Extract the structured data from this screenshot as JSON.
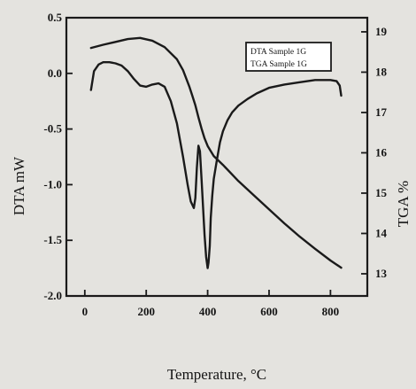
{
  "chart_data": {
    "type": "line",
    "xlabel": "Temperature, °C",
    "ylabel": "DTA mW",
    "y2label": "TGA %",
    "xlim": [
      -60,
      920
    ],
    "ylim": [
      -2.0,
      0.5
    ],
    "y2lim": [
      12.45,
      19.35
    ],
    "x_ticks": [
      "0",
      "200",
      "400",
      "600",
      "800"
    ],
    "y_ticks": [
      "0.5",
      "0.0",
      "-0.5",
      "-1.0",
      "-1.5",
      "-2.0"
    ],
    "y2_ticks": [
      "19",
      "18",
      "17",
      "16",
      "15",
      "14",
      "13"
    ],
    "legend": {
      "position": "top-right",
      "entries": [
        "DTA Sample 1G",
        "TGA Sample 1G"
      ]
    },
    "grid": false,
    "series": [
      {
        "name": "DTA Sample 1G",
        "axis": "left",
        "x": [
          20,
          30,
          45,
          60,
          80,
          100,
          120,
          140,
          160,
          180,
          200,
          220,
          240,
          260,
          280,
          300,
          320,
          335,
          345,
          355,
          360,
          365,
          370,
          375,
          380,
          385,
          390,
          395,
          400,
          403,
          407,
          410,
          415,
          420,
          430,
          440,
          450,
          465,
          480,
          500,
          530,
          560,
          600,
          650,
          700,
          750,
          800,
          820,
          830,
          835
        ],
        "y": [
          -0.15,
          0.02,
          0.08,
          0.1,
          0.1,
          0.09,
          0.07,
          0.02,
          -0.05,
          -0.11,
          -0.12,
          -0.1,
          -0.09,
          -0.12,
          -0.25,
          -0.45,
          -0.75,
          -1.0,
          -1.15,
          -1.21,
          -1.12,
          -0.85,
          -0.65,
          -0.7,
          -0.95,
          -1.2,
          -1.45,
          -1.65,
          -1.75,
          -1.7,
          -1.55,
          -1.3,
          -1.1,
          -0.95,
          -0.78,
          -0.62,
          -0.52,
          -0.42,
          -0.35,
          -0.29,
          -0.23,
          -0.18,
          -0.13,
          -0.1,
          -0.08,
          -0.06,
          -0.06,
          -0.07,
          -0.11,
          -0.2
        ]
      },
      {
        "name": "TGA Sample 1G",
        "axis": "right",
        "x": [
          20,
          60,
          100,
          140,
          180,
          220,
          260,
          300,
          320,
          340,
          350,
          360,
          370,
          380,
          390,
          400,
          420,
          450,
          500,
          550,
          600,
          650,
          700,
          750,
          800,
          835
        ],
        "y": [
          18.6,
          18.68,
          18.75,
          18.82,
          18.85,
          18.78,
          18.62,
          18.32,
          18.05,
          17.65,
          17.42,
          17.18,
          16.88,
          16.6,
          16.36,
          16.17,
          15.92,
          15.7,
          15.3,
          14.95,
          14.6,
          14.25,
          13.92,
          13.62,
          13.33,
          13.15
        ]
      }
    ]
  }
}
